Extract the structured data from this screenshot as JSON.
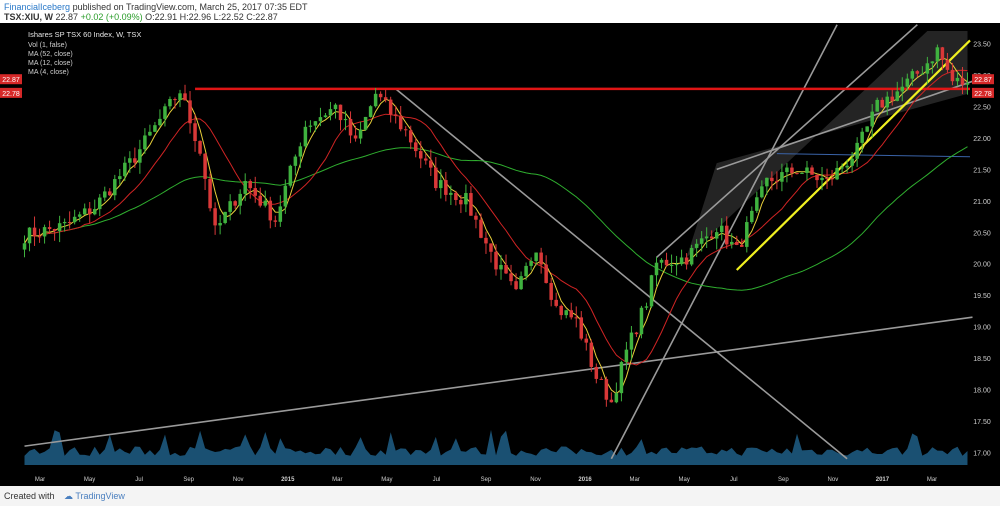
{
  "header": {
    "author": "FinancialIceberg",
    "published_text": "published on TradingView.com, March 25, 2017 07:35 EDT",
    "symbol": "TSX:XIU, W",
    "last": "22.87",
    "change": "+0.02 (+0.09%)",
    "ohlc": "O:22.91 H:22.96 L:22.52 C:22.87"
  },
  "legend": {
    "title": "Ishares SP TSX 60 Index, W, TSX",
    "lines": [
      "Vol (1, false)",
      "MA (52, close)",
      "MA (12, close)",
      "MA (4, close)"
    ]
  },
  "footer": {
    "created": "Created with",
    "brand": "TradingView"
  },
  "colors": {
    "background": "#000000",
    "up": "#3fb23f",
    "down": "#d93838",
    "ma52": "#2fae2f",
    "ma12": "#d02424",
    "ma4": "#e8cf3a",
    "volume": "#1f5e86",
    "resistance": "#e01515",
    "channel": "#f0f020",
    "trendline": "#9a9a9a",
    "axis_text": "#cfcfcf",
    "price_badge": "#d62828"
  },
  "chart_data": {
    "type": "candlestick",
    "title": "Ishares SP TSX 60 Index, W, TSX",
    "ylim": [
      16.8,
      23.7
    ],
    "y_ticks": [
      "17.00",
      "17.50",
      "18.00",
      "18.50",
      "19.00",
      "19.50",
      "20.00",
      "20.50",
      "21.00",
      "21.50",
      "22.00",
      "22.50",
      "23.00",
      "23.50"
    ],
    "x_ticks": [
      "Mar",
      "May",
      "Jul",
      "Sep",
      "Nov",
      "2015",
      "Mar",
      "May",
      "Jul",
      "Sep",
      "Nov",
      "2016",
      "Mar",
      "May",
      "Jul",
      "Sep",
      "Nov",
      "2017",
      "Mar"
    ],
    "price_labels": [
      {
        "label": "22.87",
        "value": 22.87
      },
      {
        "label": "22.78",
        "value": 22.78
      }
    ],
    "resistance_level": 22.78,
    "anchors": [
      {
        "t": 0,
        "p": 20.45
      },
      {
        "t": 8,
        "p": 20.6
      },
      {
        "t": 14,
        "p": 20.9
      },
      {
        "t": 22,
        "p": 21.7
      },
      {
        "t": 28,
        "p": 22.4
      },
      {
        "t": 31,
        "p": 22.75
      },
      {
        "t": 35,
        "p": 21.8
      },
      {
        "t": 38,
        "p": 20.5
      },
      {
        "t": 44,
        "p": 21.3
      },
      {
        "t": 50,
        "p": 20.7
      },
      {
        "t": 56,
        "p": 22.2
      },
      {
        "t": 62,
        "p": 22.5
      },
      {
        "t": 66,
        "p": 21.9
      },
      {
        "t": 70,
        "p": 22.7
      },
      {
        "t": 76,
        "p": 22.1
      },
      {
        "t": 82,
        "p": 21.3
      },
      {
        "t": 88,
        "p": 21.0
      },
      {
        "t": 94,
        "p": 20.0
      },
      {
        "t": 98,
        "p": 19.5
      },
      {
        "t": 102,
        "p": 20.3
      },
      {
        "t": 106,
        "p": 19.3
      },
      {
        "t": 110,
        "p": 19.1
      },
      {
        "t": 114,
        "p": 18.2
      },
      {
        "t": 117,
        "p": 17.8
      },
      {
        "t": 120,
        "p": 18.6
      },
      {
        "t": 124,
        "p": 19.4
      },
      {
        "t": 126,
        "p": 20.0
      },
      {
        "t": 132,
        "p": 20.1
      },
      {
        "t": 138,
        "p": 20.6
      },
      {
        "t": 142,
        "p": 20.2
      },
      {
        "t": 148,
        "p": 21.3
      },
      {
        "t": 154,
        "p": 21.5
      },
      {
        "t": 160,
        "p": 21.3
      },
      {
        "t": 166,
        "p": 21.8
      },
      {
        "t": 170,
        "p": 22.5
      },
      {
        "t": 175,
        "p": 22.8
      },
      {
        "t": 179,
        "p": 23.1
      },
      {
        "t": 182,
        "p": 23.4
      },
      {
        "t": 185,
        "p": 22.9
      },
      {
        "t": 188,
        "p": 22.87
      }
    ]
  }
}
